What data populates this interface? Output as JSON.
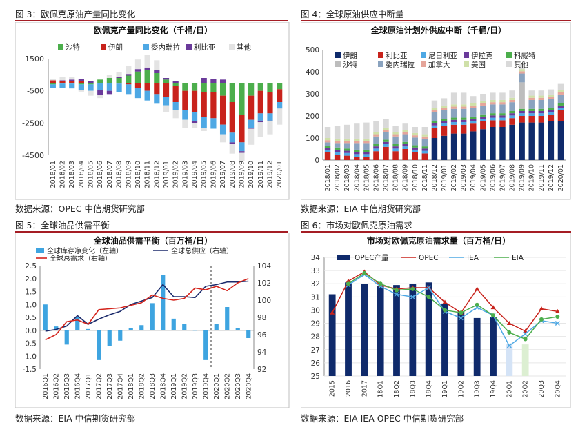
{
  "figures": [
    {
      "caption": "图 3：欧佩克原油产量同比变化",
      "source": "数据来源：OPEC   中信期货研究部"
    },
    {
      "caption": "图 4：全球原油供应中断量",
      "source": "数据来源：EIA  中信期货研究部"
    },
    {
      "caption": "图 5：全球油品供需平衡",
      "source": "数据来源：EIA    中信期货研究部"
    },
    {
      "caption": "图 6：市场对欧佩克原油需求",
      "source": "数据来源：EIA IEA OPEC  中信期货研究部"
    }
  ],
  "chart_data": [
    {
      "type": "bar",
      "stacked": true,
      "title": "欧佩克产量同比变化（千桶/日）",
      "categories": [
        "2018/01",
        "2018/02",
        "2018/03",
        "2018/04",
        "2018/05",
        "2018/06",
        "2018/07",
        "2018/08",
        "2018/09",
        "2018/10",
        "2018/11",
        "2018/12",
        "2019/01",
        "2019/02",
        "2019/03",
        "2019/04",
        "2019/05",
        "2019/06",
        "2019/07",
        "2019/08",
        "2019/09",
        "2019/10",
        "2019/11",
        "2019/12",
        "2020/01"
      ],
      "tick_labels": [
        "2018/01",
        "2018/02",
        "2018/03",
        "2018/04",
        "2018/05",
        "2018/06",
        "2018/07",
        "2018/08",
        "2018/09",
        "2018/10",
        "2018/11",
        "2018/12",
        "2019/01",
        "2019/02",
        "2019/03",
        "2019/04",
        "2019/05",
        "2019/06",
        "2019/07",
        "2019/08",
        "2019/09",
        "2019/10",
        "2019/11",
        "2019/12",
        "2020/01"
      ],
      "ylim": [
        -4500,
        1500
      ],
      "yticks": [
        1500,
        -500,
        -2500,
        -4500
      ],
      "legend": "top",
      "series": [
        {
          "name": "沙特",
          "color": "#4cae4c",
          "values": [
            -100,
            -50,
            -50,
            -100,
            -100,
            200,
            300,
            300,
            450,
            700,
            800,
            600,
            200,
            -200,
            -500,
            -500,
            -600,
            -600,
            -800,
            -1200,
            -2000,
            -800,
            -500,
            -600,
            -400
          ]
        },
        {
          "name": "伊朗",
          "color": "#c8231c",
          "values": [
            150,
            100,
            100,
            100,
            0,
            0,
            0,
            -50,
            -100,
            -300,
            -500,
            -700,
            -900,
            -1000,
            -1200,
            -1300,
            -1500,
            -1600,
            -1800,
            -1900,
            -1700,
            -1500,
            -1400,
            -1300,
            -800
          ]
        },
        {
          "name": "委内瑞拉",
          "color": "#4ea8e4",
          "values": [
            -200,
            -250,
            -300,
            -350,
            -400,
            -450,
            -500,
            -550,
            -600,
            -650,
            -600,
            -600,
            -500,
            -500,
            -600,
            -600,
            -700,
            -650,
            -600,
            -600,
            -550,
            -500,
            -450,
            -450,
            -400
          ]
        },
        {
          "name": "利比亚",
          "color": "#6a3a9a",
          "values": [
            0,
            50,
            100,
            150,
            100,
            -300,
            -200,
            50,
            100,
            150,
            150,
            200,
            100,
            100,
            0,
            -100,
            300,
            250,
            200,
            -100,
            -100,
            -50,
            -100,
            -50,
            0
          ]
        },
        {
          "name": "其他",
          "color": "#e3e3e3",
          "values": [
            100,
            200,
            150,
            -100,
            -300,
            -200,
            200,
            300,
            500,
            600,
            800,
            600,
            -400,
            -500,
            -500,
            -300,
            -200,
            0,
            -500,
            -600,
            -500,
            -1000,
            -900,
            -800,
            -1000
          ]
        }
      ]
    },
    {
      "type": "bar",
      "stacked": true,
      "title": "全球原油计划外供应中断（千桶/日）",
      "categories": [
        "2018/01",
        "2018/02",
        "2018/03",
        "2018/04",
        "2018/05",
        "2018/06",
        "2018/07",
        "2018/08",
        "2018/09",
        "2018/10",
        "2018/11",
        "2018/12",
        "2019/01",
        "2019/02",
        "2019/03",
        "2019/04",
        "2019/05",
        "2019/06",
        "2019/07",
        "2019/08",
        "2019/09",
        "2019/10",
        "2019/11",
        "2019/12",
        "2020/01"
      ],
      "tick_labels": [
        "2018/01",
        "2018/02",
        "2018/03",
        "2018/04",
        "2018/05",
        "2018/06",
        "2018/07",
        "2018/08",
        "2018/09",
        "2018/10",
        "2018/11",
        "2018/12",
        "2019/01",
        "2019/02",
        "2019/03",
        "2019/04",
        "2019/05",
        "2019/06",
        "2019/07",
        "2019/08",
        "2019/09",
        "2019/10",
        "2019/11",
        "2019/12",
        "2020/01"
      ],
      "ylim": [
        0,
        500
      ],
      "yticks": [
        0,
        100,
        200,
        300,
        400,
        500
      ],
      "legend": "top-left",
      "series": [
        {
          "name": "伊朗",
          "color": "#0f2a6b",
          "values": [
            0,
            0,
            0,
            0,
            0,
            0,
            0,
            0,
            0,
            0,
            0,
            100,
            110,
            120,
            120,
            130,
            140,
            150,
            150,
            160,
            170,
            170,
            170,
            175,
            175
          ]
        },
        {
          "name": "利比亚",
          "color": "#c8231c",
          "values": [
            35,
            25,
            20,
            15,
            15,
            40,
            60,
            40,
            50,
            35,
            30,
            45,
            45,
            40,
            40,
            35,
            35,
            30,
            30,
            30,
            30,
            30,
            30,
            30,
            50
          ]
        },
        {
          "name": "尼日利亚",
          "color": "#4ea8e4",
          "values": [
            10,
            12,
            12,
            12,
            12,
            12,
            12,
            12,
            12,
            12,
            12,
            12,
            12,
            12,
            12,
            12,
            12,
            12,
            12,
            12,
            12,
            12,
            12,
            12,
            12
          ]
        },
        {
          "name": "伊拉克",
          "color": "#6a3a9a",
          "values": [
            10,
            10,
            10,
            10,
            10,
            10,
            10,
            10,
            10,
            10,
            10,
            10,
            10,
            10,
            10,
            10,
            10,
            10,
            10,
            10,
            10,
            10,
            10,
            10,
            10
          ]
        },
        {
          "name": "科威特",
          "color": "#4cae4c",
          "values": [
            10,
            10,
            10,
            10,
            10,
            10,
            10,
            10,
            10,
            10,
            10,
            10,
            10,
            10,
            10,
            10,
            10,
            10,
            10,
            10,
            10,
            10,
            10,
            10,
            10
          ]
        },
        {
          "name": "沙特",
          "color": "#bdbdbd",
          "values": [
            0,
            0,
            0,
            0,
            0,
            0,
            0,
            0,
            0,
            0,
            0,
            0,
            0,
            0,
            0,
            0,
            0,
            0,
            0,
            0,
            120,
            0,
            0,
            0,
            0
          ]
        },
        {
          "name": "委内瑞拉",
          "color": "#8aa3bf",
          "values": [
            15,
            20,
            25,
            30,
            30,
            35,
            35,
            35,
            35,
            35,
            35,
            40,
            40,
            40,
            40,
            40,
            40,
            40,
            40,
            40,
            40,
            40,
            40,
            40,
            40
          ]
        },
        {
          "name": "加拿大",
          "color": "#e5a59a",
          "values": [
            10,
            10,
            10,
            10,
            10,
            10,
            10,
            10,
            10,
            10,
            10,
            10,
            10,
            10,
            10,
            10,
            10,
            10,
            10,
            10,
            10,
            10,
            10,
            10,
            10
          ]
        },
        {
          "name": "美国",
          "color": "#cfe0a8",
          "values": [
            10,
            10,
            10,
            10,
            10,
            10,
            10,
            10,
            10,
            10,
            10,
            10,
            10,
            10,
            10,
            10,
            10,
            10,
            10,
            10,
            10,
            10,
            10,
            10,
            10
          ]
        },
        {
          "name": "其他",
          "color": "#d9d9d9",
          "values": [
            50,
            58,
            63,
            68,
            73,
            48,
            38,
            28,
            28,
            28,
            33,
            33,
            33,
            53,
            53,
            33,
            33,
            33,
            33,
            33,
            23,
            23,
            23,
            23,
            28
          ]
        }
      ]
    },
    {
      "type": "bar+line",
      "title": "全球油品供需平衡（百万桶/日）",
      "categories": [
        "2016Q1",
        "2016Q2",
        "2016Q3",
        "2016Q4",
        "2017Q1",
        "2017Q2",
        "2017Q3",
        "2017Q4",
        "2018Q1",
        "2018Q2",
        "2018Q3",
        "2018Q4",
        "2019Q1",
        "2019Q2",
        "2019Q3",
        "2019Q4",
        "2020Q1",
        "2020Q2",
        "2020Q3",
        "2020Q4"
      ],
      "tick_labels": [
        "2016Q1",
        "2016Q2",
        "2016Q3",
        "2016Q4",
        "2017Q1",
        "2017Q2",
        "2017Q3",
        "2017Q4",
        "2018Q1",
        "2018Q2",
        "2018Q3",
        "2018Q4",
        "2019Q1",
        "2019Q2",
        "2019Q3",
        "2019Q4",
        "2020Q1",
        "2020Q2",
        "2020Q3",
        "2020Q4"
      ],
      "ylim_left": [
        -1.5,
        2.5
      ],
      "yticks_left": [
        "-1.5",
        "-1.0",
        "-0.5",
        "0.0",
        "0.5",
        "1.0",
        "1.5",
        "2.0",
        "2.5"
      ],
      "ylim_right": [
        92,
        104
      ],
      "yticks_right": [
        "92",
        "94",
        "96",
        "98",
        "100",
        "102",
        "104"
      ],
      "legend": "top-left",
      "series": [
        {
          "name": "全球库存净变化（左轴）",
          "axis": "left",
          "kind": "bar",
          "color": "#3ea4e0",
          "values": [
            1.0,
            0.15,
            -0.55,
            0.5,
            0.05,
            -1.15,
            -0.6,
            -0.4,
            0.1,
            0.2,
            1.05,
            2.15,
            0.45,
            0.25,
            0.0,
            -1.15,
            0.25,
            0.9,
            0.1,
            -0.3
          ]
        },
        {
          "name": "全球总供应（右轴）",
          "axis": "right",
          "kind": "line",
          "color": "#1b2a6b",
          "values": [
            96.4,
            96.6,
            97.0,
            98.2,
            97.2,
            97.8,
            98.3,
            98.7,
            99.5,
            99.9,
            100.3,
            101.8,
            100.4,
            100.4,
            100.3,
            101.6,
            101.8,
            102.1,
            102.1,
            102.2
          ]
        },
        {
          "name": "全球总需求（右轴）",
          "axis": "right",
          "kind": "line",
          "color": "#d3231b",
          "values": [
            95.4,
            96.0,
            97.5,
            97.7,
            97.2,
            98.9,
            99.0,
            99.1,
            99.4,
            99.7,
            100.6,
            100.2,
            100.0,
            100.2,
            101.4,
            101.2,
            101.6,
            101.1,
            102.0,
            102.5
          ]
        }
      ]
    },
    {
      "type": "bar+line",
      "title": "市场对欧佩克原油需求量（百万桶/日）",
      "categories": [
        "2015",
        "2016",
        "2017",
        "18Q1",
        "18Q2",
        "18Q3",
        "18Q4",
        "19Q1",
        "19Q2",
        "19Q3",
        "19Q4",
        "20Q1",
        "20Q2",
        "20Q3",
        "20Q4"
      ],
      "tick_labels": [
        "2015",
        "2016",
        "2017",
        "18Q1",
        "18Q2",
        "18Q3",
        "18Q4",
        "19Q1",
        "19Q2",
        "19Q3",
        "19Q4",
        "20Q1",
        "20Q2",
        "20Q3",
        "20Q4"
      ],
      "ylim": [
        25,
        34
      ],
      "yticks": [
        "25",
        "26",
        "27",
        "28",
        "29",
        "30",
        "31",
        "32",
        "33",
        "34"
      ],
      "legend": "top",
      "series": [
        {
          "name": "OPEC产量",
          "kind": "bar",
          "color": "#0f2a6b",
          "values": [
            31.2,
            32.1,
            32.0,
            31.8,
            31.9,
            32.0,
            32.1,
            30.5,
            29.9,
            29.4,
            29.5,
            27.4,
            27.4,
            null,
            null
          ]
        },
        {
          "name": "OPEC",
          "kind": "line",
          "color": "#c8231c",
          "values": [
            29.8,
            32.2,
            32.9,
            31.9,
            31.6,
            31.7,
            31.7,
            30.6,
            29.8,
            31.6,
            30.2,
            29.0,
            28.4,
            30.1,
            29.9
          ]
        },
        {
          "name": "IEA",
          "kind": "line",
          "color": "#4ea8e4",
          "values": [
            null,
            31.9,
            32.7,
            31.8,
            31.2,
            31.0,
            31.7,
            29.9,
            29.4,
            30.2,
            29.6,
            27.3,
            28.2,
            29.2,
            29.0
          ]
        },
        {
          "name": "EIA",
          "kind": "line",
          "color": "#4cae4c",
          "values": [
            null,
            32.0,
            32.8,
            32.0,
            31.5,
            31.6,
            31.0,
            30.0,
            29.8,
            30.4,
            29.6,
            28.3,
            27.8,
            29.3,
            29.5
          ]
        }
      ]
    }
  ]
}
